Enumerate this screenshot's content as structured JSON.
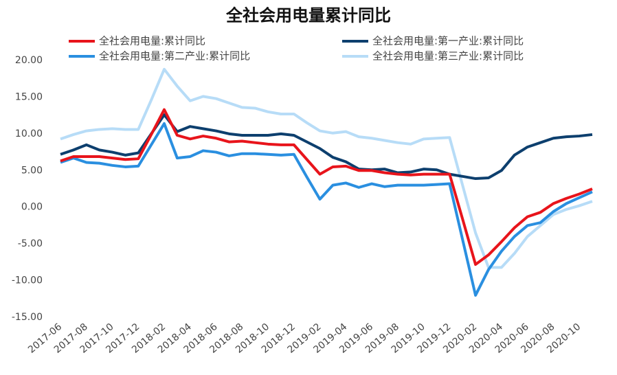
{
  "chart_data": {
    "type": "line",
    "title": "全社会用电量累计同比",
    "categories": [
      "2017-06",
      null,
      "2017-08",
      null,
      "2017-10",
      null,
      "2017-12",
      null,
      "2018-02",
      null,
      "2018-04",
      null,
      "2018-06",
      null,
      "2018-08",
      null,
      "2018-10",
      null,
      "2018-12",
      null,
      "2019-02",
      null,
      "2019-04",
      null,
      "2019-06",
      null,
      "2019-08",
      null,
      "2019-10",
      null,
      "2019-12",
      null,
      "2020-02",
      null,
      "2020-04",
      null,
      "2020-06",
      null,
      "2020-08",
      null,
      "2020-10",
      null
    ],
    "series": [
      {
        "name": "全社会用电量:累计同比",
        "color": "#e8141b",
        "values": [
          6.3,
          6.9,
          6.9,
          6.9,
          6.7,
          6.5,
          6.6,
          9.9,
          13.3,
          9.8,
          9.3,
          9.7,
          9.4,
          8.9,
          9.0,
          8.8,
          8.6,
          8.5,
          8.5,
          6.5,
          4.5,
          5.5,
          5.6,
          5.0,
          5.0,
          4.7,
          4.5,
          4.4,
          4.5,
          4.5,
          4.5,
          -1.6,
          -7.8,
          -6.5,
          -4.7,
          -2.8,
          -1.3,
          -0.7,
          0.5,
          1.2,
          1.8,
          2.5
        ]
      },
      {
        "name": "全社会用电量:第一产业:累计同比",
        "color": "#0d3f6e",
        "values": [
          7.2,
          7.8,
          8.5,
          7.8,
          7.5,
          7.1,
          7.4,
          10.0,
          12.6,
          10.3,
          11.0,
          10.7,
          10.4,
          10.0,
          9.8,
          9.8,
          9.8,
          10.0,
          9.8,
          8.9,
          8.0,
          6.8,
          6.2,
          5.2,
          5.1,
          5.2,
          4.7,
          4.8,
          5.2,
          5.1,
          4.5,
          4.2,
          3.9,
          4.0,
          5.0,
          7.1,
          8.2,
          8.8,
          9.4,
          9.6,
          9.7,
          9.9
        ]
      },
      {
        "name": "全社会用电量:第二产业:累计同比",
        "color": "#2a8fe0",
        "values": [
          6.1,
          6.7,
          6.1,
          6.0,
          5.7,
          5.5,
          5.6,
          8.5,
          11.4,
          6.7,
          6.9,
          7.7,
          7.5,
          7.0,
          7.3,
          7.3,
          7.2,
          7.1,
          7.2,
          4.1,
          1.1,
          3.0,
          3.3,
          2.7,
          3.2,
          2.8,
          3.0,
          3.0,
          3.0,
          3.1,
          3.2,
          -4.4,
          -12.0,
          -8.5,
          -6.0,
          -4.0,
          -2.5,
          -2.1,
          -0.6,
          0.5,
          1.3,
          2.1
        ]
      },
      {
        "name": "全社会用电量:第三产业:累计同比",
        "color": "#b7dcf7",
        "values": [
          9.3,
          9.9,
          10.4,
          10.6,
          10.7,
          10.6,
          10.6,
          14.6,
          18.8,
          16.5,
          14.5,
          15.1,
          14.8,
          14.2,
          13.6,
          13.5,
          13.0,
          12.7,
          12.7,
          11.5,
          10.4,
          10.1,
          10.3,
          9.6,
          9.4,
          9.1,
          8.8,
          8.6,
          9.3,
          9.4,
          9.5,
          3.0,
          -3.5,
          -8.2,
          -8.2,
          -6.3,
          -4.0,
          -2.5,
          -1.0,
          -0.3,
          0.2,
          0.8
        ]
      }
    ],
    "ylim": [
      -15,
      20
    ],
    "yticks": [
      {
        "value": -15,
        "label": "-15.00"
      },
      {
        "value": -10,
        "label": "-10.00"
      },
      {
        "value": -5,
        "label": "-5.00"
      },
      {
        "value": 0,
        "label": "0.00"
      },
      {
        "value": 5,
        "label": "5.00"
      },
      {
        "value": 10,
        "label": "10.00"
      },
      {
        "value": 15,
        "label": "15.00"
      },
      {
        "value": 20,
        "label": "20.00"
      }
    ],
    "grid": false,
    "legend": "top"
  }
}
